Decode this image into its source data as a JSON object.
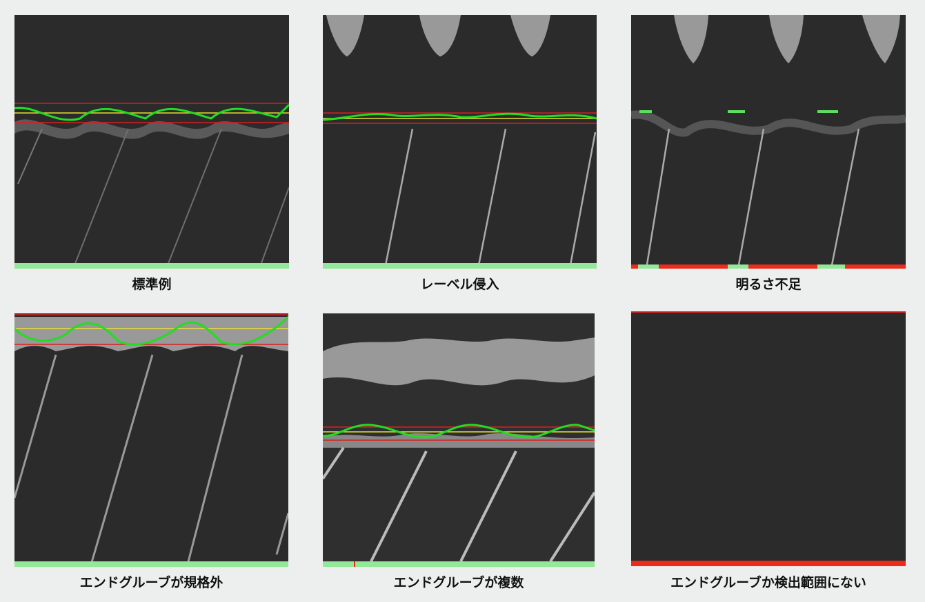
{
  "colors": {
    "page_bg": "#edeeee",
    "image_bg": "#2a2a2a",
    "detect_green": "#22dd22",
    "ok_bar": "#93e89a",
    "ng_bar": "#ee2a1a",
    "limit_red": "#d82020",
    "center_yellow": "#e8e030",
    "band_gray": "#8a8a8a"
  },
  "panels": [
    {
      "caption": "標準例",
      "status": "ok"
    },
    {
      "caption": "レーベル侵入",
      "status": "ok"
    },
    {
      "caption": "明るさ不足",
      "status": "ng"
    },
    {
      "caption": "エンドグルーブが規格外",
      "status": "ok"
    },
    {
      "caption": "エンドグルーブが複数",
      "status": "ok"
    },
    {
      "caption": "エンドグルーブか検出範囲にない",
      "status": "ng"
    }
  ]
}
